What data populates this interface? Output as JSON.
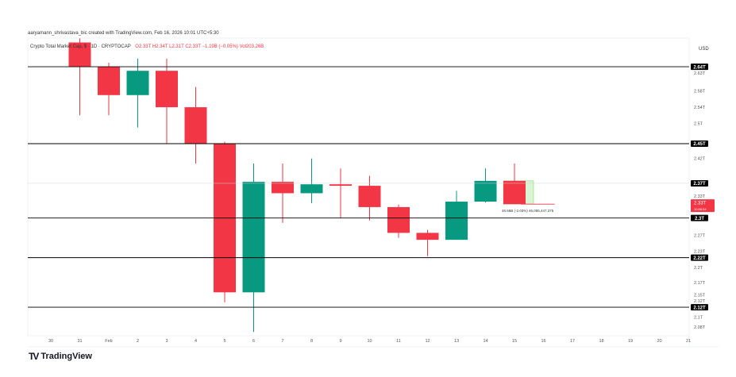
{
  "credit": "aaryamann_shrivastava_bic created with TradingView.com, Feb 16, 2026 10:01 UTC+5:30",
  "legend": {
    "symbol": "Crypto Total Market Cap, $ · 1D · CRYPTOCAP",
    "ohlc": "O2.33T H2.34T L2.31T C2.33T −1.19B (−0.05%) Vol203.26B"
  },
  "logo_text": "TradingView",
  "currency": "USD",
  "colors": {
    "up": "#089981",
    "down": "#f23645",
    "line": "#000000",
    "measure_fill": "#d8f5d0"
  },
  "current_price": {
    "label": "2.33T",
    "sub": "10:58:34",
    "value": 2.328
  },
  "measurement": {
    "text": "46.66B (-2.03%) 46,055,447,375"
  },
  "chart_data": {
    "type": "candlestick",
    "title": "Crypto Total Market Cap, $",
    "x_ticks": [
      "30",
      "31",
      "Feb",
      "2",
      "3",
      "4",
      "5",
      "6",
      "7",
      "8",
      "9",
      "10",
      "11",
      "12",
      "13",
      "14",
      "15",
      "16",
      "17",
      "18",
      "19",
      "20",
      "21"
    ],
    "candles": [
      {
        "date": "31",
        "o": 2.7,
        "h": 2.71,
        "l": 2.52,
        "c": 2.64
      },
      {
        "date": "Feb",
        "o": 2.64,
        "h": 2.65,
        "l": 2.52,
        "c": 2.57
      },
      {
        "date": "2",
        "o": 2.57,
        "h": 2.66,
        "l": 2.49,
        "c": 2.63
      },
      {
        "date": "3",
        "o": 2.63,
        "h": 2.66,
        "l": 2.45,
        "c": 2.54
      },
      {
        "date": "4",
        "o": 2.54,
        "h": 2.59,
        "l": 2.41,
        "c": 2.45
      },
      {
        "date": "5",
        "o": 2.45,
        "h": 2.455,
        "l": 2.13,
        "c": 2.15
      },
      {
        "date": "6",
        "o": 2.15,
        "h": 2.41,
        "l": 2.07,
        "c": 2.373
      },
      {
        "date": "7",
        "o": 2.373,
        "h": 2.41,
        "l": 2.29,
        "c": 2.35
      },
      {
        "date": "8",
        "o": 2.35,
        "h": 2.42,
        "l": 2.33,
        "c": 2.368
      },
      {
        "date": "9",
        "o": 2.368,
        "h": 2.4,
        "l": 2.3,
        "c": 2.365
      },
      {
        "date": "10",
        "o": 2.365,
        "h": 2.385,
        "l": 2.295,
        "c": 2.322
      },
      {
        "date": "11",
        "o": 2.322,
        "h": 2.327,
        "l": 2.26,
        "c": 2.27
      },
      {
        "date": "12",
        "o": 2.27,
        "h": 2.276,
        "l": 2.223,
        "c": 2.256
      },
      {
        "date": "13",
        "o": 2.256,
        "h": 2.355,
        "l": 2.256,
        "c": 2.333
      },
      {
        "date": "14",
        "o": 2.333,
        "h": 2.4,
        "l": 2.331,
        "c": 2.375
      },
      {
        "date": "15",
        "o": 2.375,
        "h": 2.41,
        "l": 2.328,
        "c": 2.328
      }
    ],
    "horizontal_levels": [
      {
        "value": 2.64,
        "label": "2.64T"
      },
      {
        "value": 2.45,
        "label": "2.45T"
      },
      {
        "value": 2.37,
        "label": "2.37T"
      },
      {
        "value": 2.3,
        "label": "2.3T"
      },
      {
        "value": 2.22,
        "label": "2.22T"
      },
      {
        "value": 2.12,
        "label": "2.12T"
      }
    ],
    "y_ticks": [
      "2.63T",
      "2.58T",
      "2.54T",
      "2.5T",
      "2.42T",
      "2.33T",
      "2.27T",
      "2.23T",
      "2.2T",
      "2.17T",
      "2.15T",
      "2.12T",
      "2.1T",
      "2.08T"
    ],
    "y_tick_values": [
      2.63,
      2.58,
      2.54,
      2.5,
      2.42,
      2.335,
      2.265,
      2.233,
      2.2,
      2.17,
      2.145,
      2.125,
      2.1,
      2.08
    ],
    "grid": false
  }
}
